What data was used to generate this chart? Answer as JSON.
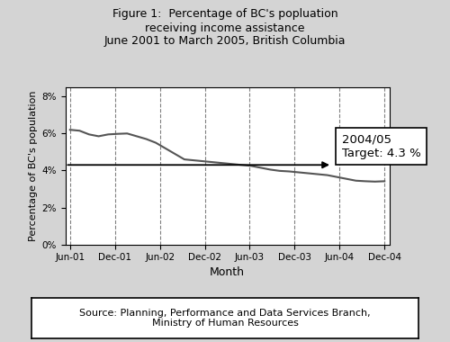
{
  "title": "Figure 1:  Percentage of BC's popluation\nreceiving income assistance\nJune 2001 to March 2005, British Columbia",
  "xlabel": "Month",
  "ylabel": "Percentage of BC's population",
  "background_color": "#d4d4d4",
  "plot_bg_color": "#ffffff",
  "x_labels": [
    "Jun-01",
    "Dec-01",
    "Jun-02",
    "Dec-02",
    "Jun-03",
    "Dec-03",
    "Jun-04",
    "Dec-04"
  ],
  "ytick_labels": [
    "0%",
    "2%",
    "4%",
    "6%",
    "8%"
  ],
  "ylim": [
    0,
    8.5
  ],
  "target_value": 4.3,
  "target_label": "2004/05\nTarget: 4.3 %",
  "line_color": "#555555",
  "line_width": 1.5,
  "target_line_color": "#000000",
  "source_text": "Source: Planning, Performance and Data Services Branch,\nMinistry of Human Resources",
  "data_x": [
    0,
    1,
    2,
    3,
    4,
    5,
    6,
    7,
    8,
    9,
    10,
    11,
    12,
    13,
    14,
    15,
    16,
    17,
    18,
    19,
    20,
    21,
    22,
    23,
    24,
    25,
    26,
    27,
    28,
    29,
    30,
    31,
    32,
    33
  ],
  "data_y": [
    6.2,
    6.15,
    5.95,
    5.85,
    5.95,
    5.98,
    6.0,
    5.85,
    5.7,
    5.5,
    5.2,
    4.9,
    4.6,
    4.55,
    4.5,
    4.45,
    4.4,
    4.35,
    4.3,
    4.25,
    4.15,
    4.05,
    3.98,
    3.95,
    3.9,
    3.85,
    3.8,
    3.75,
    3.65,
    3.55,
    3.45,
    3.42,
    3.4,
    3.42
  ]
}
